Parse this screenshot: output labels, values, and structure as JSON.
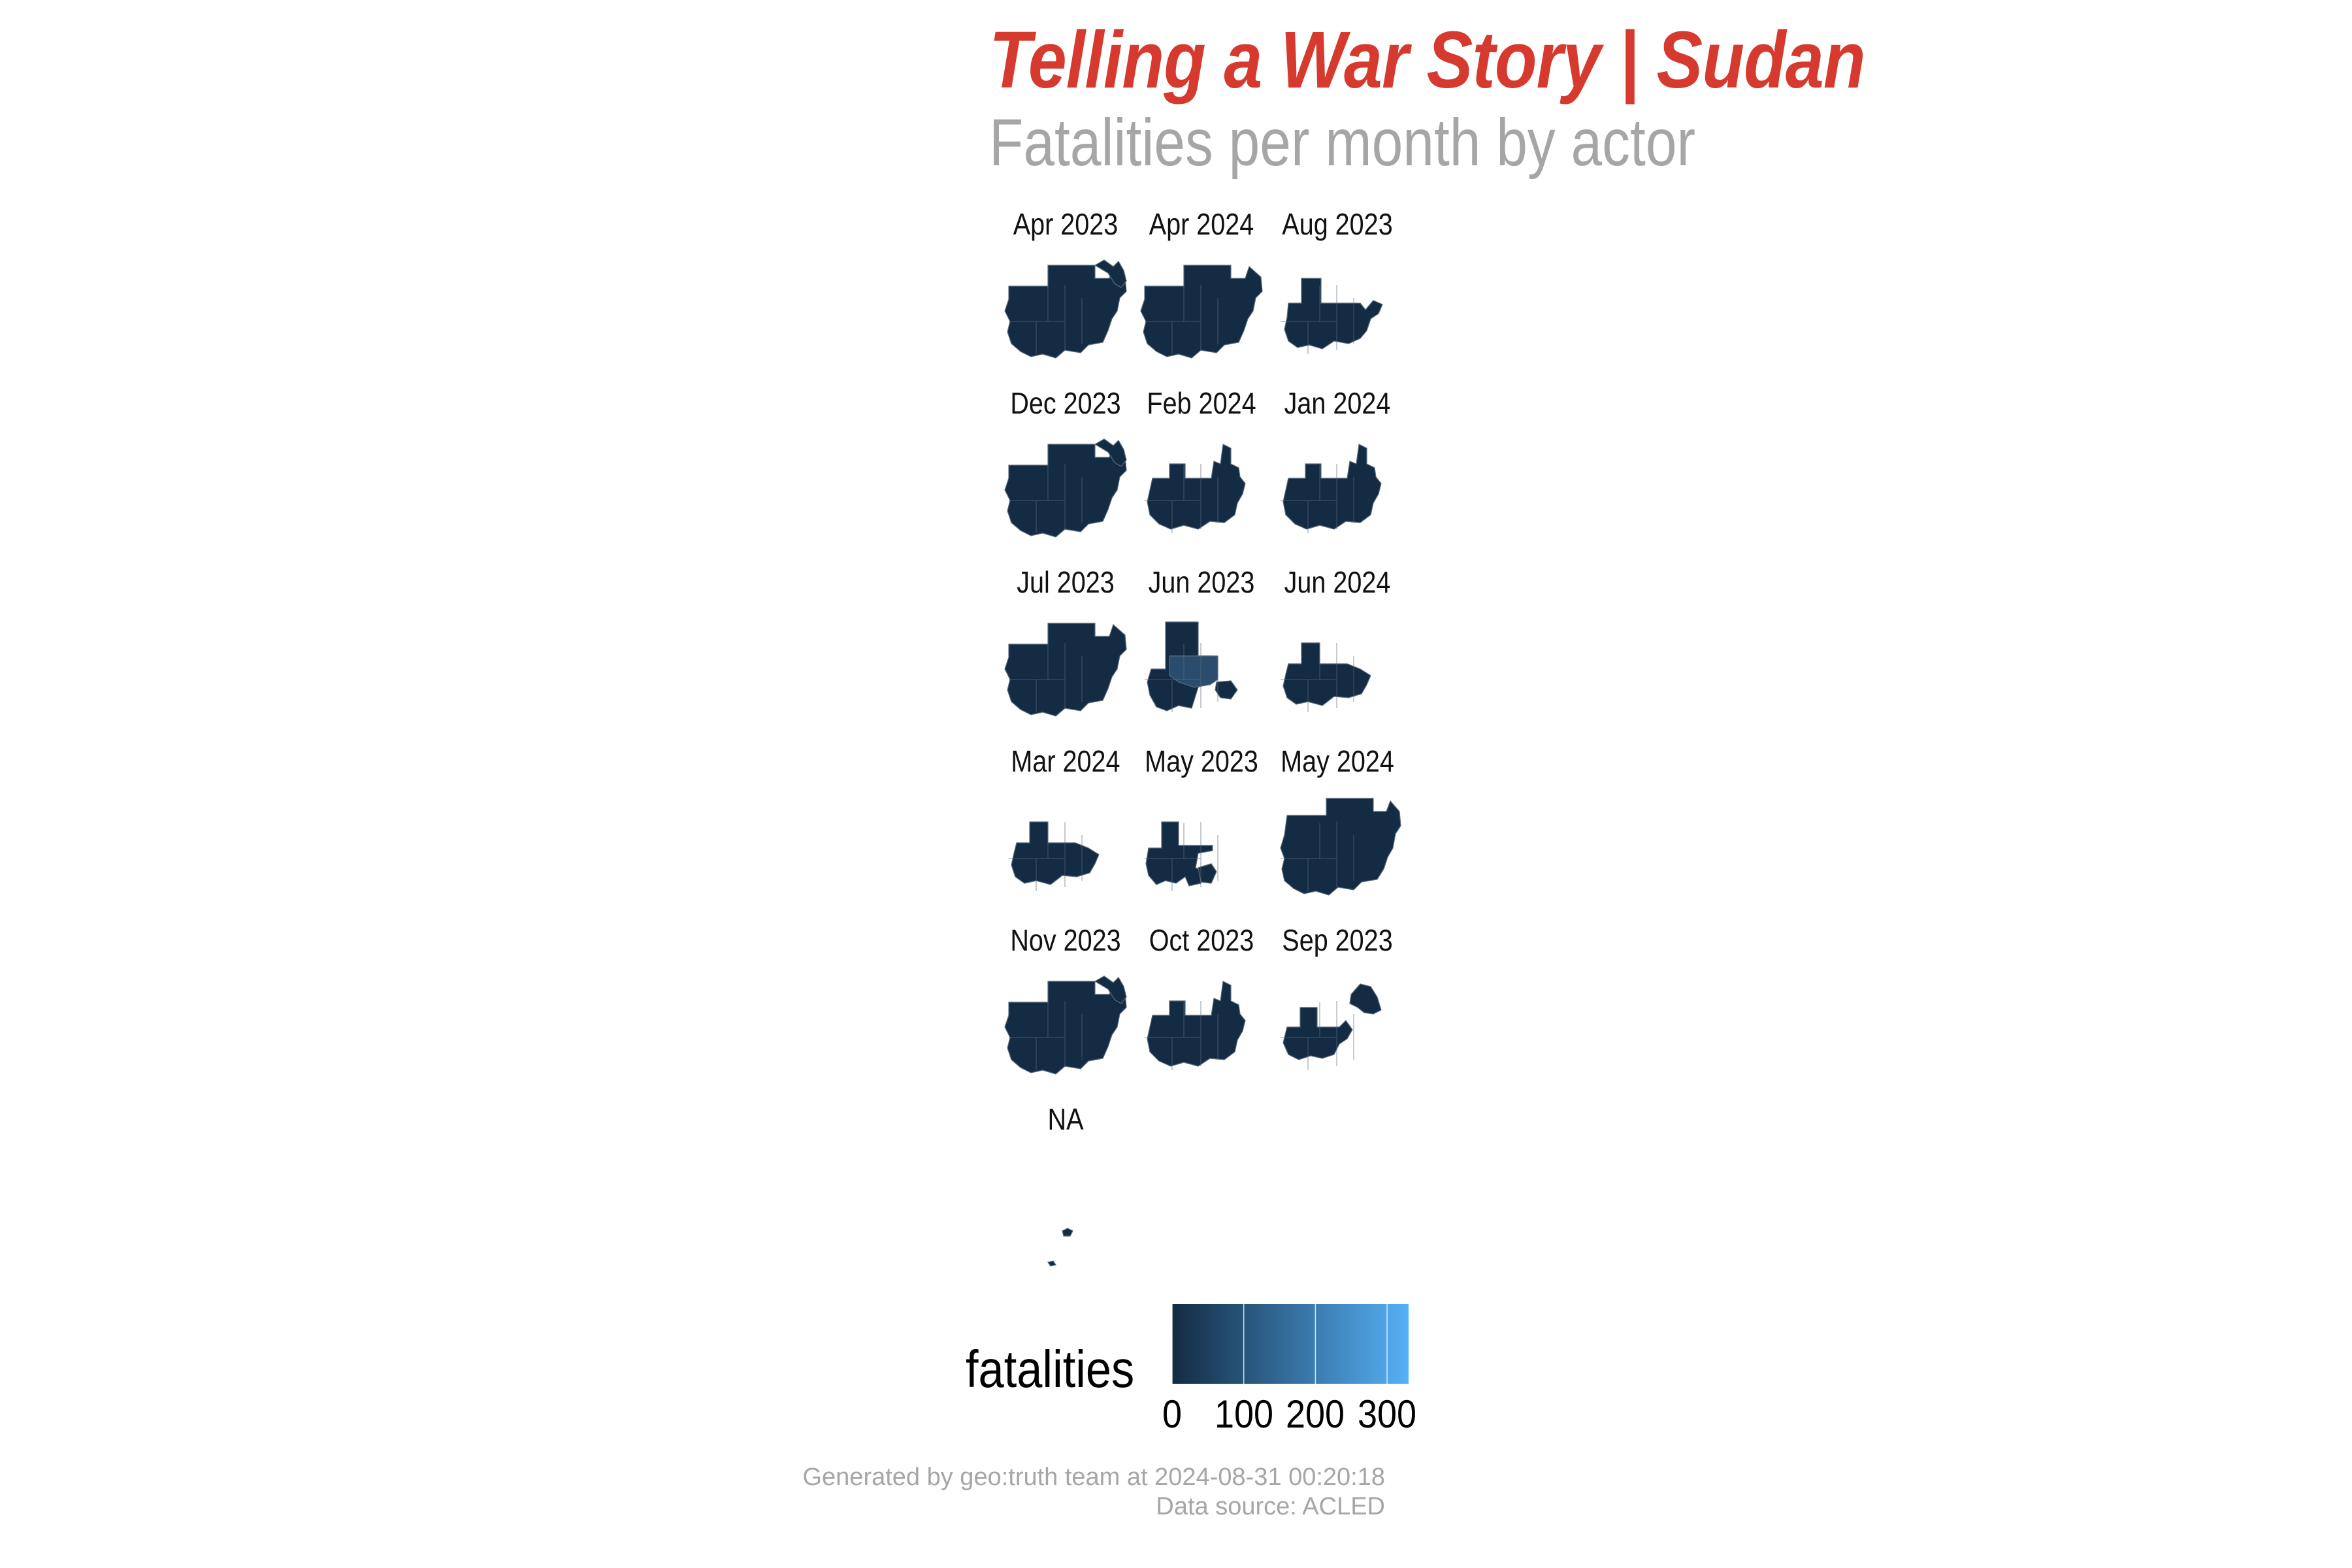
{
  "title": "Telling a War Story | Sudan",
  "subtitle": "Fatalities per month by actor",
  "colors": {
    "title": "#d63a2f",
    "subtitle": "#a6a6a6",
    "map_low": "#132b43",
    "map_high": "#56b1f7",
    "border": "#5b6b7c"
  },
  "panels": [
    {
      "label": "Apr 2023",
      "shape": "full-east"
    },
    {
      "label": "Apr 2024",
      "shape": "full"
    },
    {
      "label": "Aug 2023",
      "shape": "partial-east-tip"
    },
    {
      "label": "Dec 2023",
      "shape": "full-east"
    },
    {
      "label": "Feb 2024",
      "shape": "partial-north-east"
    },
    {
      "label": "Jan 2024",
      "shape": "partial-north-east"
    },
    {
      "label": "Jul 2023",
      "shape": "full"
    },
    {
      "label": "Jun 2023",
      "shape": "highlight-center"
    },
    {
      "label": "Jun 2024",
      "shape": "partial-small"
    },
    {
      "label": "Mar 2024",
      "shape": "partial-small"
    },
    {
      "label": "May 2023",
      "shape": "partial-center"
    },
    {
      "label": "May 2024",
      "shape": "full-shift"
    },
    {
      "label": "Nov 2023",
      "shape": "full-east"
    },
    {
      "label": "Oct 2023",
      "shape": "partial-north-east"
    },
    {
      "label": "Sep 2023",
      "shape": "partial-detached-east"
    },
    {
      "label": "NA",
      "shape": "dots"
    }
  ],
  "legend": {
    "title": "fatalities",
    "min": 0,
    "max": 330,
    "ticks": [
      "0",
      "100",
      "200",
      "300"
    ]
  },
  "footer": {
    "line1": "Generated by geo:truth team at 2024-08-31 00:20:18",
    "line2": "Data source: ACLED"
  }
}
